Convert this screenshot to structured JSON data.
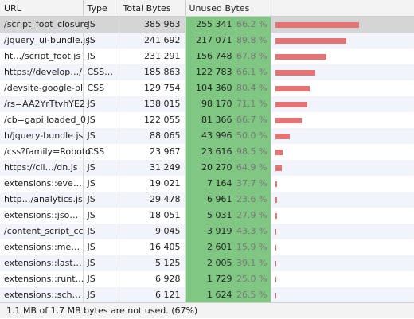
{
  "columns": {
    "url": "URL",
    "type": "Type",
    "total": "Total Bytes",
    "unused": "Unused Bytes"
  },
  "rows": [
    {
      "url": "/script_foot_closure",
      "type": "JS",
      "total": "385 963",
      "unused": "255 341",
      "pct": "66.2 %",
      "total_bytes": 385963,
      "unused_bytes": 255341,
      "selected": true
    },
    {
      "url": "/jquery_ui-bundle.js",
      "type": "JS",
      "total": "241 692",
      "unused": "217 071",
      "pct": "89.8 %",
      "total_bytes": 241692,
      "unused_bytes": 217071
    },
    {
      "url": "ht…/script_foot.js",
      "type": "JS",
      "total": "231 291",
      "unused": "156 748",
      "pct": "67.8 %",
      "total_bytes": 231291,
      "unused_bytes": 156748
    },
    {
      "url": "https://develop…/",
      "type": "CSS…",
      "total": "185 863",
      "unused": "122 783",
      "pct": "66.1 %",
      "total_bytes": 185863,
      "unused_bytes": 122783
    },
    {
      "url": "/devsite-google-bl",
      "type": "CSS",
      "total": "129 754",
      "unused": "104 360",
      "pct": "80.4 %",
      "total_bytes": 129754,
      "unused_bytes": 104360
    },
    {
      "url": "/rs=AA2YrTtvhYE2",
      "type": "JS",
      "total": "138 015",
      "unused": "98 170",
      "pct": "71.1 %",
      "total_bytes": 138015,
      "unused_bytes": 98170
    },
    {
      "url": "/cb=gapi.loaded_0",
      "type": "JS",
      "total": "122 055",
      "unused": "81 366",
      "pct": "66.7 %",
      "total_bytes": 122055,
      "unused_bytes": 81366
    },
    {
      "url": "h/jquery-bundle.js",
      "type": "JS",
      "total": "88 065",
      "unused": "43 996",
      "pct": "50.0 %",
      "total_bytes": 88065,
      "unused_bytes": 43996
    },
    {
      "url": "/css?family=Roboto",
      "type": "CSS",
      "total": "23 967",
      "unused": "23 616",
      "pct": "98.5 %",
      "total_bytes": 23967,
      "unused_bytes": 23616
    },
    {
      "url": "https://cli…/dn.js",
      "type": "JS",
      "total": "31 249",
      "unused": "20 270",
      "pct": "64.9 %",
      "total_bytes": 31249,
      "unused_bytes": 20270
    },
    {
      "url": "extensions::eve…",
      "type": "JS",
      "total": "19 021",
      "unused": "7 164",
      "pct": "37.7 %",
      "total_bytes": 19021,
      "unused_bytes": 7164
    },
    {
      "url": "http…/analytics.js",
      "type": "JS",
      "total": "29 478",
      "unused": "6 961",
      "pct": "23.6 %",
      "total_bytes": 29478,
      "unused_bytes": 6961
    },
    {
      "url": "extensions::jso…",
      "type": "JS",
      "total": "18 051",
      "unused": "5 031",
      "pct": "27.9 %",
      "total_bytes": 18051,
      "unused_bytes": 5031
    },
    {
      "url": "/content_script_cc",
      "type": "JS",
      "total": "9 045",
      "unused": "3 919",
      "pct": "43.3 %",
      "total_bytes": 9045,
      "unused_bytes": 3919
    },
    {
      "url": "extensions::me…",
      "type": "JS",
      "total": "16 405",
      "unused": "2 601",
      "pct": "15.9 %",
      "total_bytes": 16405,
      "unused_bytes": 2601
    },
    {
      "url": "extensions::last…",
      "type": "JS",
      "total": "5 125",
      "unused": "2 005",
      "pct": "39.1 %",
      "total_bytes": 5125,
      "unused_bytes": 2005
    },
    {
      "url": "extensions::runt…",
      "type": "JS",
      "total": "6 928",
      "unused": "1 729",
      "pct": "25.0 %",
      "total_bytes": 6928,
      "unused_bytes": 1729
    },
    {
      "url": "extensions::sch…",
      "type": "JS",
      "total": "6 121",
      "unused": "1 624",
      "pct": "26.5 %",
      "total_bytes": 6121,
      "unused_bytes": 1624
    }
  ],
  "bar_colors": {
    "used": "#e57373",
    "unused": "#81c784"
  },
  "footer": {
    "summary": "1.1 MB of 1.7 MB bytes are not used. (67%)"
  }
}
